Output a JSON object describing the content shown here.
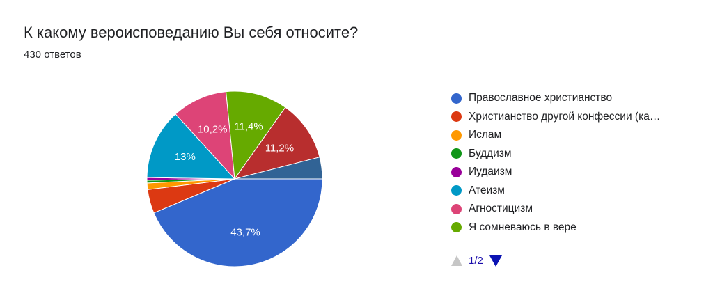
{
  "header": {
    "title": "К какому вероисповеданию Вы себя относите?",
    "subtitle": "430 ответов"
  },
  "chart_data": {
    "type": "pie",
    "title": "К какому вероисповеданию Вы себя относите?",
    "categories": [
      "Православное христианство",
      "Христианство другой конфессии (ка…",
      "Ислам",
      "Буддизм",
      "Иудаизм",
      "Атеизм",
      "Агностицизм",
      "Я сомневаюсь в вере",
      "",
      ""
    ],
    "values": [
      43.7,
      4.4,
      1.2,
      0.5,
      0.5,
      13.0,
      10.2,
      11.4,
      11.2,
      4.0
    ],
    "data_labels": [
      "43,7%",
      "",
      "",
      "",
      "",
      "13%",
      "10,2%",
      "11,4%",
      "11,2%",
      ""
    ],
    "colors": [
      "#3366cc",
      "#dc3912",
      "#ff9900",
      "#109618",
      "#990099",
      "#0099c6",
      "#dd4477",
      "#66aa00",
      "#b82e2e",
      "#316395"
    ],
    "legend_position": "right"
  },
  "legend": {
    "items": [
      {
        "label": "Православное христианство",
        "color": "#3366cc"
      },
      {
        "label": "Христианство другой конфессии (ка…",
        "color": "#dc3912"
      },
      {
        "label": "Ислам",
        "color": "#ff9900"
      },
      {
        "label": "Буддизм",
        "color": "#109618"
      },
      {
        "label": "Иудаизм",
        "color": "#990099"
      },
      {
        "label": "Атеизм",
        "color": "#0099c6"
      },
      {
        "label": "Агностицизм",
        "color": "#dd4477"
      },
      {
        "label": "Я сомневаюсь в вере",
        "color": "#66aa00"
      }
    ]
  },
  "pager": {
    "page": "1/2",
    "prev_icon": "triangle-up-icon",
    "next_icon": "triangle-down-icon"
  }
}
